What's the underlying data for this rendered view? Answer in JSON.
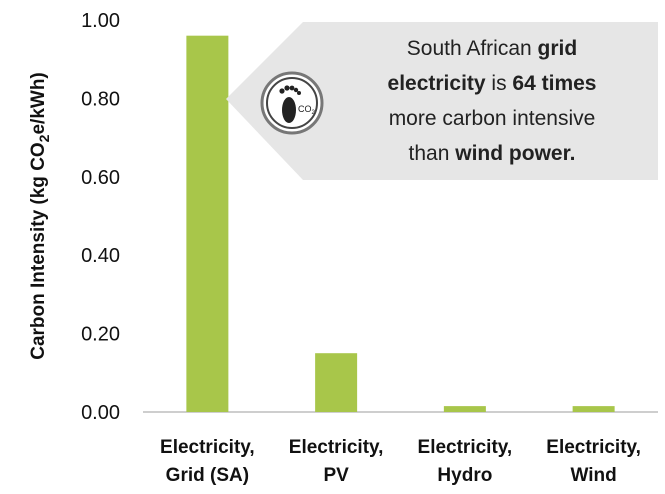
{
  "chart_data": {
    "type": "bar",
    "categories": [
      [
        "Electricity,",
        "Grid (SA)"
      ],
      [
        "Electricity,",
        "PV"
      ],
      [
        "Electricity,",
        "Hydro"
      ],
      [
        "Electricity,",
        "Wind"
      ]
    ],
    "values": [
      0.96,
      0.15,
      0.015,
      0.015
    ],
    "ylim": [
      0,
      1.0
    ],
    "yticks": [
      "0.00",
      "0.20",
      "0.40",
      "0.60",
      "0.80",
      "1.00"
    ],
    "ylabel": {
      "main": "Carbon Intensity (kg CO",
      "sub": "2",
      "tail": "e/kWh)"
    },
    "bar_color": "#a8c64a",
    "grid": false,
    "annotation": {
      "lines": [
        [
          {
            "t": "South African ",
            "b": false
          },
          {
            "t": "grid",
            "b": true
          }
        ],
        [
          {
            "t": "electricity",
            "b": true
          },
          {
            "t": " is ",
            "b": false
          },
          {
            "t": "64 times",
            "b": true
          }
        ],
        [
          {
            "t": "more carbon intensive",
            "b": false
          }
        ],
        [
          {
            "t": "than ",
            "b": false
          },
          {
            "t": "wind power.",
            "b": true
          }
        ]
      ],
      "icon": "footprint-co2-icon",
      "icon_text": "CO",
      "icon_sub": "2",
      "background": "#e6e6e6"
    }
  }
}
